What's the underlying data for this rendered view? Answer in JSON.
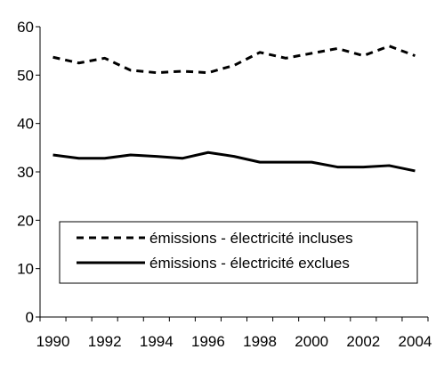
{
  "chart_data": {
    "type": "line",
    "title": "",
    "xlabel": "",
    "ylabel": "",
    "x": [
      1990,
      1991,
      1992,
      1993,
      1994,
      1995,
      1996,
      1997,
      1998,
      1999,
      2000,
      2001,
      2002,
      2003,
      2004
    ],
    "x_tick_labels": [
      "1990",
      "1992",
      "1994",
      "1996",
      "1998",
      "2000",
      "2002",
      "2004"
    ],
    "y_tick_labels": [
      "0",
      "10",
      "20",
      "30",
      "40",
      "50",
      "60"
    ],
    "ylim": [
      0,
      60
    ],
    "grid": false,
    "legend_placement": "lower-left",
    "series": [
      {
        "name": "émissions - électricité incluses",
        "style": "dashed",
        "color": "#000000",
        "values": [
          53.7,
          52.5,
          53.5,
          51.0,
          50.5,
          50.8,
          50.5,
          52.0,
          54.7,
          53.5,
          54.5,
          55.5,
          54.0,
          56.0,
          54.0
        ]
      },
      {
        "name": "émissions - électricité exclues",
        "style": "solid",
        "color": "#000000",
        "values": [
          33.5,
          32.8,
          32.8,
          33.5,
          33.2,
          32.8,
          34.0,
          33.2,
          32.0,
          32.0,
          32.0,
          31.0,
          31.0,
          31.3,
          30.2
        ]
      }
    ]
  }
}
